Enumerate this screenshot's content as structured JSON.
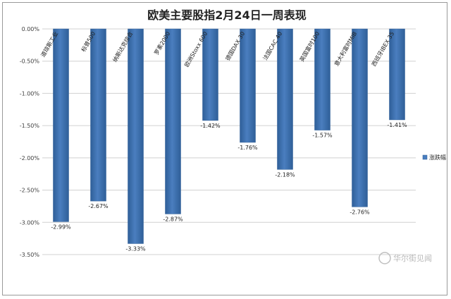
{
  "chart_data": {
    "type": "bar",
    "title": "欧美主要股指2月24日一周表现",
    "categories": [
      "道琼斯工业",
      "标普500",
      "纳斯达克综合",
      "罗素2000",
      "欧洲Stoxx 600",
      "德国DAX 30",
      "法国CAC 40",
      "英国富时100",
      "意大利富时MIB",
      "西班牙IBEX 35"
    ],
    "series": [
      {
        "name": "涨跌幅",
        "values": [
          -2.99,
          -2.67,
          -3.33,
          -2.87,
          -1.42,
          -1.76,
          -2.18,
          -1.57,
          -2.76,
          -1.41
        ]
      }
    ],
    "value_labels": [
      "-2.99%",
      "-2.67%",
      "-3.33%",
      "-2.87%",
      "-1.42%",
      "-1.76%",
      "-2.18%",
      "-1.57%",
      "-2.76%",
      "-1.41%"
    ],
    "yticks": [
      "0.00%",
      "-0.50%",
      "-1.00%",
      "-1.50%",
      "-2.00%",
      "-2.50%",
      "-3.00%",
      "-3.50%"
    ],
    "ylim": [
      -3.5,
      0
    ],
    "grid": true,
    "legend_position": "right",
    "colors": {
      "bar": "#4a7ebf",
      "bar_dark": "#2f5f98",
      "grid": "#d0d0d0",
      "axis_text": "#404040"
    }
  },
  "watermark": "华尔街见闻"
}
